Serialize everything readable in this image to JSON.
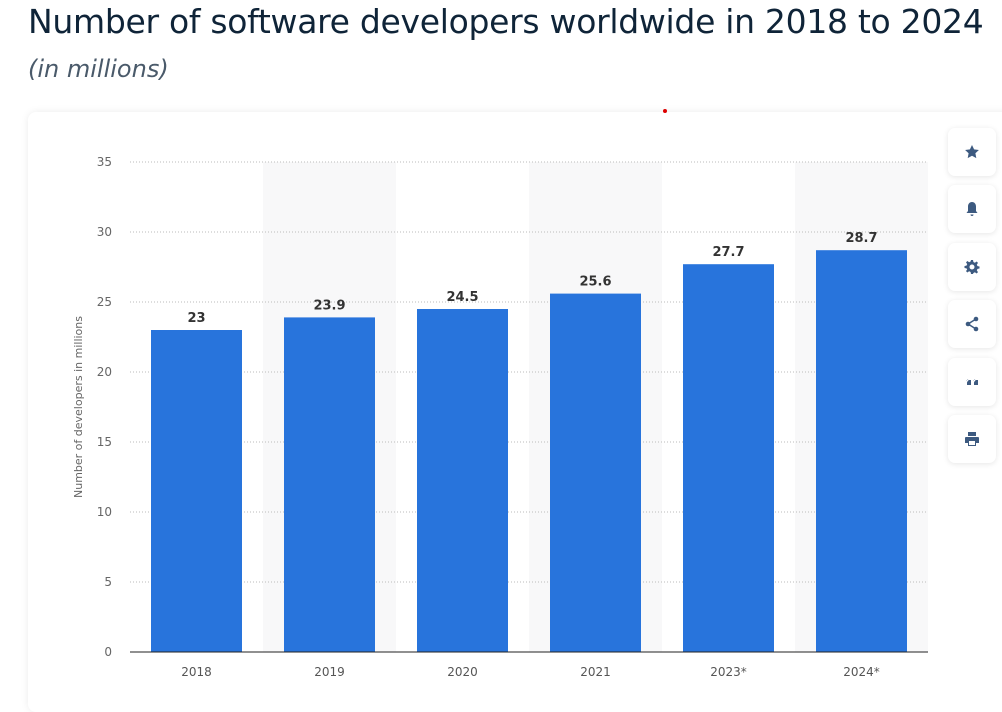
{
  "chart_data": {
    "type": "bar",
    "title": "Number of software developers worldwide in 2018 to 2024",
    "subtitle": "(in millions)",
    "ylabel": "Number of developers in millions",
    "xlabel": "",
    "categories": [
      "2018",
      "2019",
      "2020",
      "2021",
      "2023*",
      "2024*"
    ],
    "values": [
      23,
      23.9,
      24.5,
      25.6,
      27.7,
      28.7
    ],
    "ylim": [
      0,
      35
    ],
    "yticks": [
      0,
      5,
      10,
      15,
      20,
      25,
      30,
      35
    ],
    "grid": true,
    "bar_color": "#2874dc"
  },
  "toolbar": {
    "icons": [
      "star-icon",
      "bell-icon",
      "gear-icon",
      "share-icon",
      "quote-icon",
      "print-icon"
    ]
  }
}
